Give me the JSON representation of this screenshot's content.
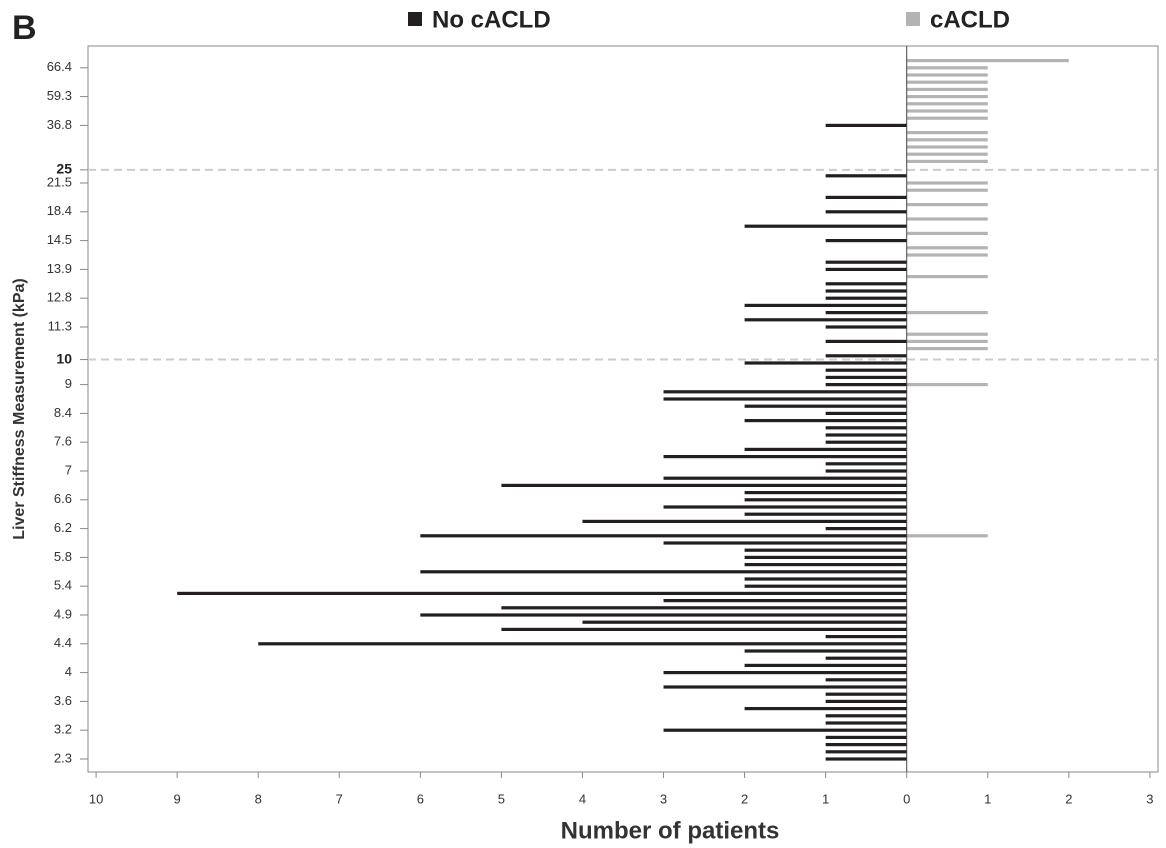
{
  "chart_data": {
    "type": "bar",
    "orientation": "horizontal",
    "panel_label": "B",
    "x_label": "Number of patients",
    "y_label": "Liver Stiffness Measurement (kPa)",
    "legend": "top",
    "categories": [
      "2.3",
      null,
      null,
      null,
      "3.2",
      null,
      null,
      null,
      "3.6",
      null,
      null,
      null,
      "4",
      null,
      null,
      null,
      "4.4",
      null,
      null,
      null,
      "4.9",
      null,
      null,
      null,
      "5.4",
      null,
      null,
      null,
      "5.8",
      null,
      null,
      null,
      "6.2",
      null,
      null,
      null,
      "6.6",
      null,
      null,
      null,
      "7",
      null,
      null,
      null,
      "7.6",
      null,
      null,
      null,
      "8.4",
      null,
      null,
      null,
      "9",
      null,
      null,
      null,
      null,
      null,
      null,
      null,
      "11.3",
      null,
      null,
      null,
      "12.8",
      null,
      null,
      null,
      "13.9",
      null,
      null,
      null,
      "14.5",
      null,
      null,
      null,
      "18.4",
      null,
      null,
      null,
      "21.5",
      null,
      null,
      null,
      null,
      null,
      null,
      null,
      "36.8",
      null,
      null,
      null,
      "59.3",
      null,
      null,
      null,
      "66.4",
      null
    ],
    "series": [
      {
        "name": "No cACLD",
        "color": "#231f20",
        "values": [
          -1,
          -1,
          -1,
          -1,
          -3,
          -1,
          -1,
          -2,
          -1,
          -1,
          -3,
          -1,
          -3,
          -2,
          -1,
          -2,
          -8,
          -1,
          -5,
          -4,
          -6,
          -5,
          -3,
          -9,
          -2,
          -2,
          -6,
          -2,
          -2,
          -2,
          -3,
          -6,
          -1,
          -4,
          -2,
          -3,
          -2,
          -2,
          -5,
          -3,
          -1,
          -1,
          -3,
          -2,
          -1,
          -1,
          -1,
          -2,
          -1,
          -2,
          -3,
          -3,
          -1,
          -1,
          -1,
          -2,
          -1,
          0,
          -1,
          0,
          -1,
          -2,
          -1,
          -2,
          -1,
          -1,
          -1,
          0,
          -1,
          -1,
          0,
          0,
          -1,
          0,
          -2,
          0,
          -1,
          0,
          -1,
          0,
          0,
          -1,
          0,
          0,
          0,
          0,
          0,
          0,
          -1,
          0,
          0,
          0,
          0,
          0,
          0,
          0,
          0,
          0
        ]
      },
      {
        "name": "cACLD",
        "color": "#b3b3b3",
        "values": [
          0,
          0,
          0,
          0,
          0,
          0,
          0,
          0,
          0,
          0,
          0,
          0,
          0,
          0,
          0,
          0,
          0,
          0,
          0,
          0,
          0,
          0,
          0,
          0,
          0,
          0,
          0,
          0,
          0,
          0,
          0,
          1,
          0,
          0,
          0,
          0,
          0,
          0,
          0,
          0,
          0,
          0,
          0,
          0,
          0,
          0,
          0,
          0,
          0,
          0,
          0,
          0,
          1,
          0,
          0,
          0,
          0,
          1,
          1,
          1,
          0,
          0,
          1,
          0,
          0,
          0,
          0,
          1,
          0,
          0,
          1,
          1,
          0,
          1,
          0,
          1,
          0,
          1,
          0,
          1,
          1,
          0,
          0,
          1,
          1,
          1,
          1,
          1,
          0,
          1,
          1,
          1,
          1,
          1,
          1,
          1,
          1,
          2
        ]
      }
    ],
    "reference_lines": [
      10,
      25
    ],
    "xlim": [
      -10.1,
      3.1
    ],
    "xticks": [
      {
        "value": -10,
        "label": "10"
      },
      {
        "value": -9,
        "label": "9"
      },
      {
        "value": -8,
        "label": "8"
      },
      {
        "value": -7,
        "label": "7"
      },
      {
        "value": -6,
        "label": "6"
      },
      {
        "value": -5,
        "label": "5"
      },
      {
        "value": -4,
        "label": "4"
      },
      {
        "value": -3,
        "label": "3"
      },
      {
        "value": -2,
        "label": "2"
      },
      {
        "value": -1,
        "label": "1"
      },
      0,
      1,
      2,
      3
    ],
    "grid": false
  }
}
